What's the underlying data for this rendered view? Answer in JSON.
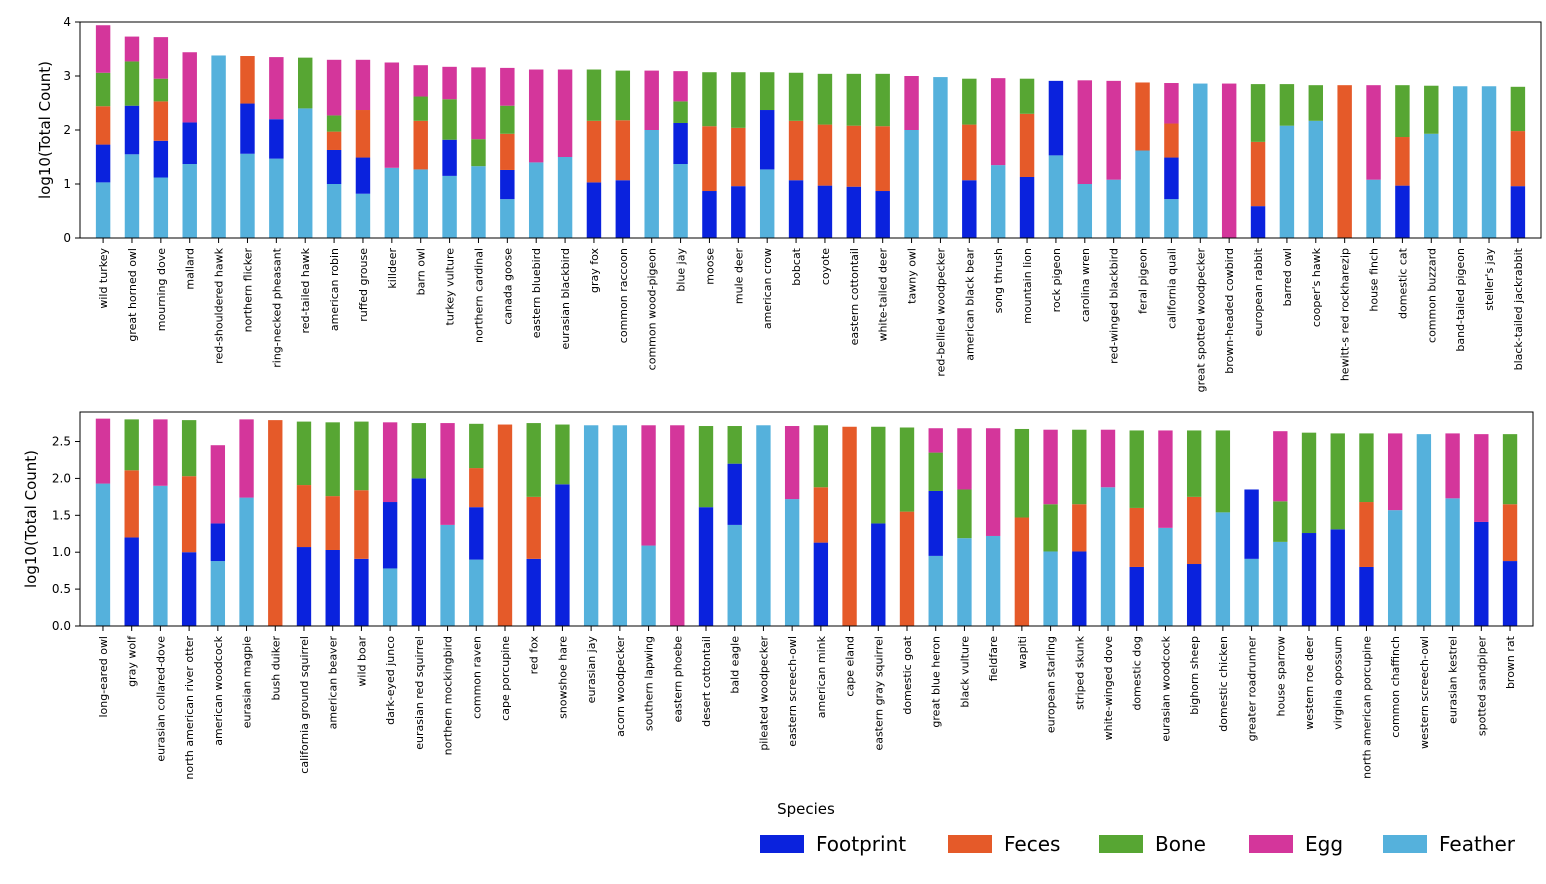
{
  "chart_data": [
    {
      "type": "bar",
      "stacked": true,
      "xlabel": "",
      "ylabel": "log10(Total Count)",
      "ylim": [
        0,
        4
      ],
      "yticks": [
        "0",
        "1",
        "2",
        "3",
        "4"
      ],
      "grid": false,
      "categories": [
        "wild turkey",
        "great horned owl",
        "mourning dove",
        "mallard",
        "red-shouldered hawk",
        "northern flicker",
        "ring-necked pheasant",
        "red-tailed hawk",
        "american robin",
        "ruffed grouse",
        "killdeer",
        "barn owl",
        "turkey vulture",
        "northern cardinal",
        "canada goose",
        "eastern bluebird",
        "eurasian blackbird",
        "gray fox",
        "common raccoon",
        "common wood-pigeon",
        "blue jay",
        "moose",
        "mule deer",
        "american crow",
        "bobcat",
        "coyote",
        "eastern cottontail",
        "white-tailed deer",
        "tawny owl",
        "red-bellied woodpecker",
        "american black bear",
        "song thrush",
        "mountain lion",
        "rock pigeon",
        "carolina wren",
        "red-winged blackbird",
        "feral pigeon",
        "california quail",
        "great spotted woodpecker",
        "brown-headed cowbird",
        "european rabbit",
        "barred owl",
        "cooper's hawk",
        "hewitt-s red rockharezip",
        "house finch",
        "domestic cat",
        "common buzzard",
        "band-tailed pigeon",
        "steller's jay",
        "black-tailed jackrabbit"
      ],
      "series": [
        {
          "name": "Feather",
          "values": [
            1.03,
            1.55,
            1.12,
            1.37,
            3.38,
            1.56,
            1.47,
            2.4,
            1.0,
            0.82,
            1.3,
            1.27,
            1.15,
            1.33,
            0.72,
            1.4,
            1.5,
            0,
            0,
            2.0,
            1.37,
            0,
            0,
            1.27,
            0,
            0,
            0,
            0,
            2.0,
            2.98,
            0,
            1.35,
            0,
            1.53,
            1.0,
            1.08,
            1.62,
            0.72,
            2.86,
            0,
            0,
            2.08,
            2.17,
            0,
            1.08,
            0,
            1.93,
            2.81,
            2.81,
            0
          ]
        },
        {
          "name": "Footprint",
          "values": [
            0.7,
            0.9,
            0.68,
            0.77,
            0,
            0.93,
            0.73,
            0,
            0.63,
            0.67,
            0,
            0,
            0.67,
            0,
            0.54,
            0,
            0,
            1.03,
            1.07,
            0,
            0.76,
            0.87,
            0.96,
            1.1,
            1.07,
            0.97,
            0.95,
            0.87,
            0,
            0,
            1.07,
            0,
            1.13,
            1.38,
            0,
            0,
            0,
            0.77,
            0,
            0,
            0.59,
            0,
            0,
            0,
            0,
            0.97,
            0,
            0,
            0,
            0.96
          ]
        },
        {
          "name": "Feces",
          "values": [
            0.71,
            0,
            0.73,
            0,
            0,
            0.88,
            0,
            0,
            0.34,
            0.88,
            0,
            0.9,
            0,
            0,
            0.67,
            0,
            0,
            1.14,
            1.11,
            0,
            0,
            1.2,
            1.08,
            0,
            1.1,
            1.13,
            1.13,
            1.2,
            0,
            0,
            1.03,
            0,
            1.17,
            0,
            0,
            0,
            1.26,
            0.63,
            0,
            0,
            1.19,
            0,
            0,
            2.83,
            0,
            0.9,
            0,
            0,
            0,
            1.02
          ]
        },
        {
          "name": "Bone",
          "values": [
            0.62,
            0.82,
            0.42,
            0,
            0,
            0,
            0,
            0.94,
            0.3,
            0,
            0,
            0.45,
            0.75,
            0.5,
            0.52,
            0,
            0,
            0.95,
            0.92,
            0,
            0.4,
            1.0,
            1.03,
            0.7,
            0.89,
            0.94,
            0.96,
            0.97,
            0,
            0,
            0.85,
            0,
            0.65,
            0,
            0,
            0,
            0,
            0,
            0,
            0,
            1.07,
            0.77,
            0.66,
            0,
            0,
            0.96,
            0.89,
            0,
            0,
            0.82
          ]
        },
        {
          "name": "Egg",
          "values": [
            0.88,
            0.46,
            0.77,
            1.3,
            0,
            0,
            1.15,
            0,
            1.03,
            0.93,
            1.95,
            0.58,
            0.6,
            1.33,
            0.7,
            1.72,
            1.62,
            0,
            0,
            1.1,
            0.56,
            0,
            0,
            0,
            0,
            0,
            0,
            0,
            1.0,
            0,
            0,
            1.61,
            0,
            0,
            1.92,
            1.83,
            0,
            0.75,
            0,
            2.86,
            0,
            0,
            0,
            0,
            1.75,
            0,
            0,
            0,
            0,
            0
          ]
        }
      ]
    },
    {
      "type": "bar",
      "stacked": true,
      "xlabel": "Species",
      "ylabel": "log10(Total Count)",
      "ylim": [
        0,
        2.9
      ],
      "yticks": [
        "0.0",
        "0.5",
        "1.0",
        "1.5",
        "2.0",
        "2.5"
      ],
      "grid": false,
      "categories": [
        "long-eared owl",
        "gray wolf",
        "eurasian collared-dove",
        "north american river otter",
        "american woodcock",
        "eurasian magpie",
        "bush duiker",
        "california ground squirrel",
        "american beaver",
        "wild boar",
        "dark-eyed junco",
        "eurasian red squirrel",
        "northern mockingbird",
        "common raven",
        "cape porcupine",
        "red fox",
        "snowshoe hare",
        "eurasian jay",
        "acorn woodpecker",
        "southern lapwing",
        "eastern phoebe",
        "desert cottontail",
        "bald eagle",
        "pileated woodpecker",
        "eastern screech-owl",
        "american mink",
        "cape eland",
        "eastern gray squirrel",
        "domestic goat",
        "great blue heron",
        "black vulture",
        "fieldfare",
        "wapiti",
        "european starling",
        "striped skunk",
        "white-winged dove",
        "domestic dog",
        "eurasian woodcock",
        "bighorn sheep",
        "domestic chicken",
        "greater roadrunner",
        "house sparrow",
        "western roe deer",
        "virginia opossum",
        "north american porcupine",
        "common chaffinch",
        "western screech-owl",
        "eurasian kestrel",
        "spotted sandpiper",
        "brown rat"
      ],
      "series": [
        {
          "name": "Feather",
          "values": [
            1.93,
            0,
            1.9,
            0,
            0.88,
            1.74,
            0,
            0,
            0,
            0,
            0.78,
            0,
            1.37,
            0.9,
            0,
            0,
            0,
            2.72,
            2.72,
            1.09,
            0,
            0,
            1.37,
            2.72,
            1.72,
            0,
            0,
            0,
            0,
            0.95,
            1.19,
            1.22,
            0,
            1.01,
            0,
            1.88,
            0,
            1.33,
            0,
            1.54,
            0.91,
            1.14,
            0,
            0,
            0,
            1.57,
            2.6,
            1.73,
            0,
            0
          ]
        },
        {
          "name": "Footprint",
          "values": [
            0,
            1.2,
            0,
            1.0,
            0.51,
            0,
            0,
            1.07,
            1.03,
            0.91,
            0.9,
            2.0,
            0,
            0.71,
            0,
            0.91,
            1.92,
            0,
            0,
            0,
            0,
            1.61,
            0.83,
            0,
            0,
            1.13,
            0,
            1.39,
            0,
            0.88,
            0,
            0,
            0,
            0,
            1.01,
            0,
            0.8,
            0,
            0.84,
            0,
            0.94,
            0,
            1.26,
            1.31,
            0.8,
            0,
            0,
            0,
            1.41,
            0.88
          ]
        },
        {
          "name": "Feces",
          "values": [
            0,
            0.91,
            0,
            1.03,
            0,
            0,
            2.79,
            0.84,
            0.73,
            0.93,
            0,
            0,
            0,
            0.53,
            2.73,
            0.84,
            0,
            0,
            0,
            0,
            0,
            0,
            0,
            0,
            0,
            0.75,
            2.7,
            0,
            1.55,
            0,
            0,
            0,
            1.47,
            0,
            0.64,
            0,
            0.8,
            0,
            0.91,
            0,
            0,
            0,
            0,
            0,
            0.88,
            0,
            0,
            0,
            0,
            0.77
          ]
        },
        {
          "name": "Bone",
          "values": [
            0,
            0.69,
            0,
            0.76,
            0,
            0,
            0,
            0.86,
            1.0,
            0.93,
            0,
            0.75,
            0,
            0.6,
            0,
            1.0,
            0.81,
            0,
            0,
            0,
            0,
            1.1,
            0.51,
            0,
            0,
            0.84,
            0,
            1.31,
            1.14,
            0.52,
            0.66,
            0,
            1.2,
            0.64,
            1.01,
            0,
            1.05,
            0,
            0.9,
            1.11,
            0,
            0.55,
            1.36,
            1.3,
            0.93,
            0,
            0,
            0,
            0,
            0.95
          ]
        },
        {
          "name": "Egg",
          "values": [
            0.88,
            0,
            0.9,
            0,
            1.06,
            1.06,
            0,
            0,
            0,
            0,
            1.08,
            0,
            1.38,
            0,
            0,
            0,
            0,
            0,
            0,
            1.63,
            2.72,
            0,
            0,
            0,
            0.99,
            0,
            0,
            0,
            0,
            0.33,
            0.83,
            1.46,
            0,
            1.01,
            0,
            0.78,
            0,
            1.32,
            0,
            0,
            0,
            0.95,
            0,
            0,
            0,
            1.04,
            0,
            0.88,
            1.19,
            0
          ]
        }
      ]
    }
  ],
  "legend": {
    "placement": "bottom-right",
    "order": [
      "Footprint",
      "Feces",
      "Bone",
      "Egg",
      "Feather"
    ],
    "colors": {
      "Footprint": "#0a22dd",
      "Feces": "#e55a29",
      "Bone": "#57a633",
      "Egg": "#d4369b",
      "Feather": "#55b1dc"
    }
  }
}
